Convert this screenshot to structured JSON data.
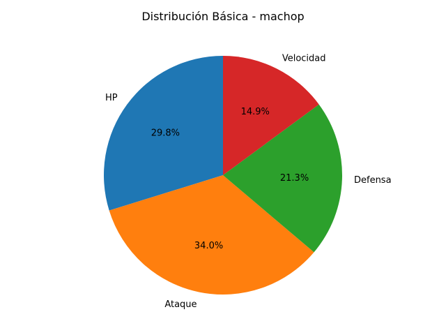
{
  "chart_data": {
    "type": "pie",
    "title": "Distribución Básica - machop",
    "categories": [
      "HP",
      "Ataque",
      "Defensa",
      "Velocidad"
    ],
    "values": [
      70,
      80,
      50,
      35
    ],
    "percent_labels": [
      "29.8%",
      "34.0%",
      "21.3%",
      "14.9%"
    ],
    "colors": [
      "#1f77b4",
      "#ff7f0e",
      "#2ca02c",
      "#d62728"
    ],
    "start_angle_deg": 90,
    "direction": "counterclockwise"
  }
}
